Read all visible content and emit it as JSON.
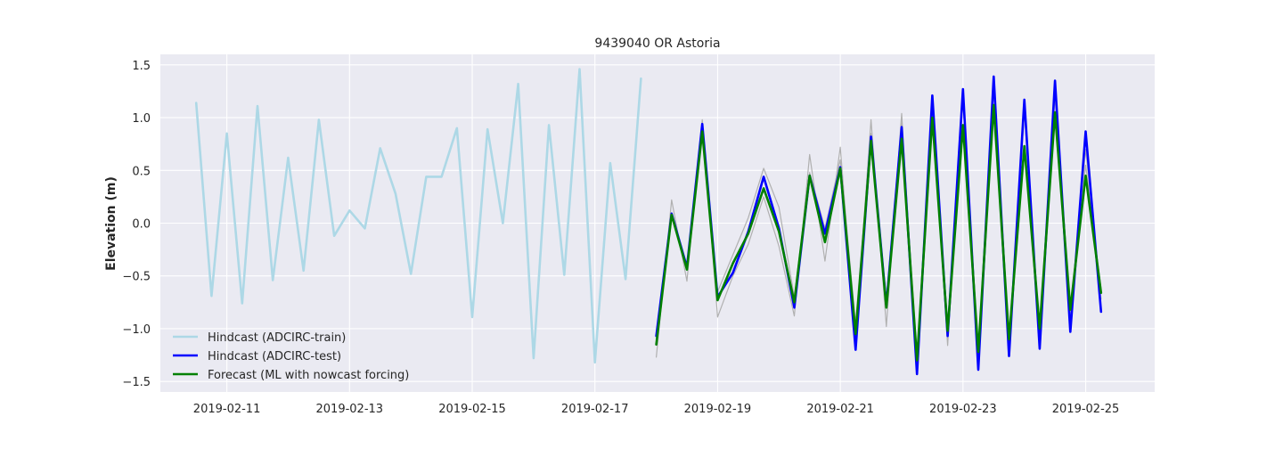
{
  "chart_data": {
    "type": "line",
    "title": "9439040 OR Astoria",
    "xlabel": "",
    "ylabel": "Elevation (m)",
    "x_type": "date",
    "xlim": [
      "2019-02-09T22:00",
      "2019-02-26T03:00"
    ],
    "ylim": [
      -1.6,
      1.6
    ],
    "x_ticks": [
      "2019-02-11",
      "2019-02-13",
      "2019-02-15",
      "2019-02-17",
      "2019-02-19",
      "2019-02-21",
      "2019-02-23",
      "2019-02-25"
    ],
    "y_ticks": [
      -1.5,
      -1.0,
      -0.5,
      0.0,
      0.5,
      1.0,
      1.5
    ],
    "y_tick_labels": [
      "−1.5",
      "−1.0",
      "−0.5",
      "0.0",
      "0.5",
      "1.0",
      "1.5"
    ],
    "grid": true,
    "legend_position": "lower-left",
    "background": "#eaeaf2",
    "series": [
      {
        "name": "Hindcast (ADCIRC-train)",
        "color": "#add8e6",
        "in_legend": true,
        "x": [
          "2019-02-10T12:00",
          "2019-02-10T18:00",
          "2019-02-11T00:00",
          "2019-02-11T06:00",
          "2019-02-11T12:00",
          "2019-02-11T18:00",
          "2019-02-12T00:00",
          "2019-02-12T06:00",
          "2019-02-12T12:00",
          "2019-02-12T18:00",
          "2019-02-13T00:00",
          "2019-02-13T06:00",
          "2019-02-13T12:00",
          "2019-02-13T18:00",
          "2019-02-14T00:00",
          "2019-02-14T06:00",
          "2019-02-14T12:00",
          "2019-02-14T18:00",
          "2019-02-15T00:00",
          "2019-02-15T06:00",
          "2019-02-15T12:00",
          "2019-02-15T18:00",
          "2019-02-16T00:00",
          "2019-02-16T06:00",
          "2019-02-16T12:00",
          "2019-02-16T18:00",
          "2019-02-17T00:00",
          "2019-02-17T06:00",
          "2019-02-17T12:00",
          "2019-02-17T18:00"
        ],
        "values": [
          1.14,
          -0.69,
          0.85,
          -0.76,
          1.11,
          -0.54,
          0.62,
          -0.45,
          0.98,
          -0.12,
          0.12,
          -0.05,
          0.71,
          0.28,
          -0.48,
          0.44,
          0.44,
          0.9,
          -0.89,
          0.89,
          0.0,
          1.32,
          -1.28,
          0.93,
          -0.49,
          1.46,
          -1.32,
          0.57,
          -0.53,
          1.37
        ]
      },
      {
        "name": "",
        "color": "#b0b0b0",
        "in_legend": false,
        "x": [
          "2019-02-18T00:00",
          "2019-02-18T06:00",
          "2019-02-18T12:00",
          "2019-02-18T18:00",
          "2019-02-19T00:00",
          "2019-02-19T06:00",
          "2019-02-19T12:00",
          "2019-02-19T18:00",
          "2019-02-20T00:00",
          "2019-02-20T06:00",
          "2019-02-20T12:00",
          "2019-02-20T18:00",
          "2019-02-21T00:00",
          "2019-02-21T06:00",
          "2019-02-21T12:00",
          "2019-02-21T18:00",
          "2019-02-22T00:00",
          "2019-02-22T06:00",
          "2019-02-22T12:00",
          "2019-02-22T18:00",
          "2019-02-23T00:00",
          "2019-02-23T06:00",
          "2019-02-23T12:00",
          "2019-02-23T18:00",
          "2019-02-24T00:00",
          "2019-02-24T06:00",
          "2019-02-24T12:00",
          "2019-02-24T18:00",
          "2019-02-25T00:00",
          "2019-02-25T06:00"
        ],
        "values": [
          -1.27,
          0.22,
          -0.55,
          0.98,
          -0.89,
          -0.5,
          -0.2,
          0.25,
          -0.22,
          -0.88,
          0.65,
          -0.36,
          0.72,
          -1.1,
          0.98,
          -0.98,
          1.04,
          -1.39,
          1.16,
          -1.16,
          1.22,
          -1.34,
          1.33,
          -1.26,
          1.12,
          -1.14,
          1.27,
          -0.99,
          0.7,
          -0.72
        ]
      },
      {
        "name": "",
        "color": "#b0b0b0",
        "in_legend": false,
        "x": [
          "2019-02-18T00:00",
          "2019-02-18T06:00",
          "2019-02-18T12:00",
          "2019-02-18T18:00",
          "2019-02-19T00:00",
          "2019-02-19T06:00",
          "2019-02-19T12:00",
          "2019-02-19T18:00",
          "2019-02-20T00:00",
          "2019-02-20T06:00",
          "2019-02-20T12:00",
          "2019-02-20T18:00",
          "2019-02-21T00:00",
          "2019-02-21T06:00",
          "2019-02-21T12:00",
          "2019-02-21T18:00",
          "2019-02-22T00:00",
          "2019-02-22T06:00",
          "2019-02-22T12:00",
          "2019-02-22T18:00",
          "2019-02-23T00:00",
          "2019-02-23T06:00",
          "2019-02-23T12:00",
          "2019-02-23T18:00",
          "2019-02-24T00:00",
          "2019-02-24T06:00",
          "2019-02-24T12:00",
          "2019-02-24T18:00",
          "2019-02-25T00:00",
          "2019-02-25T06:00"
        ],
        "values": [
          -1.1,
          0.1,
          -0.4,
          0.9,
          -0.65,
          -0.3,
          0.05,
          0.52,
          0.15,
          -0.7,
          0.48,
          -0.05,
          0.6,
          -0.95,
          0.85,
          -0.72,
          0.95,
          -1.25,
          1.08,
          -1.02,
          1.15,
          -1.2,
          1.25,
          -1.15,
          1.05,
          -1.05,
          1.2,
          -0.88,
          0.55,
          -0.62
        ]
      },
      {
        "name": "Hindcast (ADCIRC-test)",
        "color": "#0000ff",
        "in_legend": true,
        "x": [
          "2019-02-18T00:00",
          "2019-02-18T06:00",
          "2019-02-18T12:00",
          "2019-02-18T18:00",
          "2019-02-19T00:00",
          "2019-02-19T06:00",
          "2019-02-19T12:00",
          "2019-02-19T18:00",
          "2019-02-20T00:00",
          "2019-02-20T06:00",
          "2019-02-20T12:00",
          "2019-02-20T18:00",
          "2019-02-21T00:00",
          "2019-02-21T06:00",
          "2019-02-21T12:00",
          "2019-02-21T18:00",
          "2019-02-22T00:00",
          "2019-02-22T06:00",
          "2019-02-22T12:00",
          "2019-02-22T18:00",
          "2019-02-23T00:00",
          "2019-02-23T06:00",
          "2019-02-23T12:00",
          "2019-02-23T18:00",
          "2019-02-24T00:00",
          "2019-02-24T06:00",
          "2019-02-24T12:00",
          "2019-02-24T18:00",
          "2019-02-25T00:00",
          "2019-02-25T06:00"
        ],
        "values": [
          -1.07,
          0.09,
          -0.42,
          0.94,
          -0.7,
          -0.47,
          -0.08,
          0.44,
          -0.05,
          -0.8,
          0.45,
          -0.1,
          0.53,
          -1.2,
          0.82,
          -0.78,
          0.91,
          -1.43,
          1.21,
          -1.07,
          1.27,
          -1.39,
          1.39,
          -1.26,
          1.17,
          -1.19,
          1.35,
          -1.03,
          0.87,
          -0.84
        ]
      },
      {
        "name": "Forecast (ML with nowcast forcing)",
        "color": "#008000",
        "in_legend": true,
        "x": [
          "2019-02-18T00:00",
          "2019-02-18T06:00",
          "2019-02-18T12:00",
          "2019-02-18T18:00",
          "2019-02-19T00:00",
          "2019-02-19T06:00",
          "2019-02-19T12:00",
          "2019-02-19T18:00",
          "2019-02-20T00:00",
          "2019-02-20T06:00",
          "2019-02-20T12:00",
          "2019-02-20T18:00",
          "2019-02-21T00:00",
          "2019-02-21T06:00",
          "2019-02-21T12:00",
          "2019-02-21T18:00",
          "2019-02-22T00:00",
          "2019-02-22T06:00",
          "2019-02-22T12:00",
          "2019-02-22T18:00",
          "2019-02-23T00:00",
          "2019-02-23T06:00",
          "2019-02-23T12:00",
          "2019-02-23T18:00",
          "2019-02-24T00:00",
          "2019-02-24T06:00",
          "2019-02-24T12:00",
          "2019-02-24T18:00",
          "2019-02-25T00:00",
          "2019-02-25T06:00"
        ],
        "values": [
          -1.15,
          0.08,
          -0.44,
          0.87,
          -0.73,
          -0.38,
          -0.1,
          0.33,
          -0.08,
          -0.75,
          0.45,
          -0.18,
          0.52,
          -1.05,
          0.78,
          -0.8,
          0.8,
          -1.3,
          1.0,
          -1.02,
          0.93,
          -1.22,
          1.12,
          -1.1,
          0.73,
          -1.0,
          1.05,
          -0.82,
          0.45,
          -0.66
        ]
      }
    ]
  }
}
